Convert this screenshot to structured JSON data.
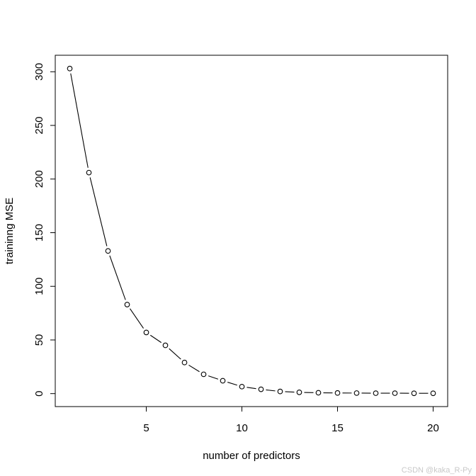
{
  "chart_data": {
    "type": "line",
    "title": "",
    "xlabel": "number of predictors",
    "ylabel": "traininng MSE",
    "x": [
      1,
      2,
      3,
      4,
      5,
      6,
      7,
      8,
      9,
      10,
      11,
      12,
      13,
      14,
      15,
      16,
      17,
      18,
      19,
      20
    ],
    "series": [
      {
        "values": [
          303,
          206,
          133,
          83,
          57,
          45,
          29,
          18,
          12,
          6.5,
          4,
          2,
          1.2,
          0.8,
          0.6,
          0.5,
          0.4,
          0.4,
          0.3,
          0.3
        ]
      }
    ],
    "xticks": [
      5,
      10,
      15,
      20
    ],
    "yticks": [
      0,
      50,
      100,
      150,
      200,
      250,
      300
    ],
    "xlim": [
      0.24,
      20.76
    ],
    "ylim": [
      -12.1,
      315.4
    ],
    "grid": false,
    "line_color": "#000000",
    "marker": "open-circle"
  },
  "watermark": "CSDN @kaka_R-Py"
}
